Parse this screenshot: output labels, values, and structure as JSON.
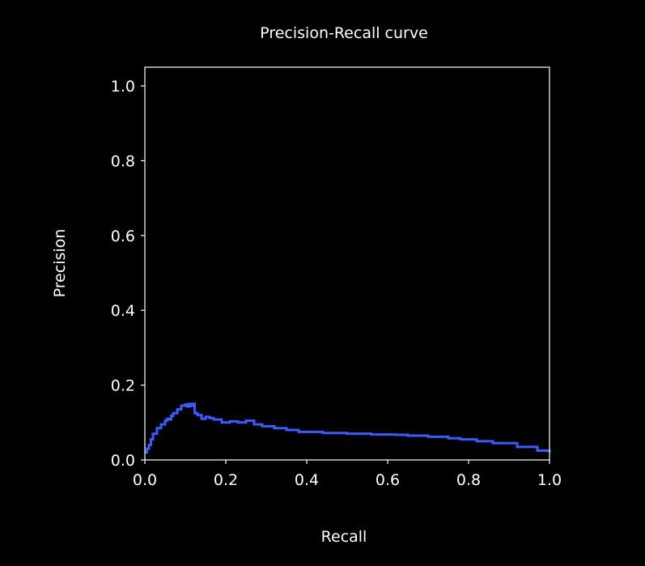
{
  "chart_data": {
    "type": "line",
    "title": "Precision-Recall curve",
    "xlabel": "Recall",
    "ylabel": "Precision",
    "xlim": [
      0.0,
      1.0
    ],
    "ylim": [
      0.0,
      1.05
    ],
    "xticks": [
      "0.0",
      "0.2",
      "0.4",
      "0.6",
      "0.8",
      "1.0"
    ],
    "yticks": [
      "0.0",
      "0.2",
      "0.4",
      "0.6",
      "0.8",
      "1.0"
    ],
    "grid": false,
    "colors": {
      "background": "#000000",
      "series": "#3b5bff",
      "axes": "#ffffff",
      "text": "#ffffff"
    },
    "series": [
      {
        "step": true,
        "x": [
          0.0,
          0.005,
          0.01,
          0.015,
          0.02,
          0.03,
          0.04,
          0.05,
          0.055,
          0.06,
          0.065,
          0.07,
          0.08,
          0.09,
          0.1,
          0.105,
          0.11,
          0.115,
          0.12,
          0.123,
          0.13,
          0.14,
          0.15,
          0.16,
          0.17,
          0.19,
          0.21,
          0.23,
          0.25,
          0.27,
          0.29,
          0.32,
          0.35,
          0.38,
          0.44,
          0.5,
          0.56,
          0.62,
          0.65,
          0.7,
          0.75,
          0.78,
          0.82,
          0.86,
          0.92,
          0.97,
          1.0
        ],
        "y": [
          0.02,
          0.03,
          0.04,
          0.055,
          0.07,
          0.085,
          0.095,
          0.105,
          0.11,
          0.108,
          0.118,
          0.125,
          0.135,
          0.145,
          0.148,
          0.143,
          0.15,
          0.145,
          0.15,
          0.125,
          0.12,
          0.11,
          0.115,
          0.112,
          0.108,
          0.1,
          0.103,
          0.1,
          0.105,
          0.095,
          0.09,
          0.085,
          0.08,
          0.075,
          0.072,
          0.07,
          0.068,
          0.067,
          0.065,
          0.062,
          0.058,
          0.055,
          0.05,
          0.045,
          0.035,
          0.025,
          0.02
        ]
      }
    ]
  }
}
